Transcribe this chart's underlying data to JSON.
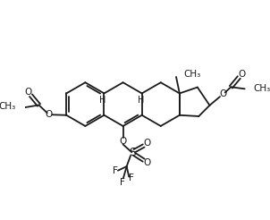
{
  "background_color": "#ffffff",
  "line_color": "#1a1a1a",
  "line_width": 1.3,
  "font_size": 7.5,
  "fig_width": 3.02,
  "fig_height": 2.46,
  "dpi": 100,
  "xlim": [
    0,
    10
  ],
  "ylim": [
    0,
    8.2
  ]
}
